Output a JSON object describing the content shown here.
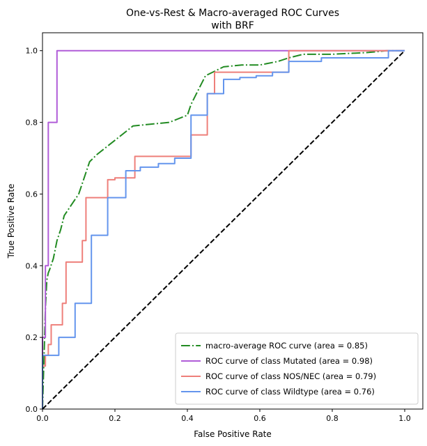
{
  "chart_data": {
    "type": "line",
    "title_line1": "One-vs-Rest & Macro-averaged ROC Curves",
    "title_line2": "with BRF",
    "xlabel": "False Positive Rate",
    "ylabel": "True Positive Rate",
    "xlim": [
      0.0,
      1.05
    ],
    "ylim": [
      0.0,
      1.05
    ],
    "xticks": [
      0.0,
      0.2,
      0.4,
      0.6,
      0.8,
      1.0
    ],
    "yticks": [
      0.0,
      0.2,
      0.4,
      0.6,
      0.8,
      1.0
    ],
    "xtick_labels": [
      "0.0",
      "0.2",
      "0.4",
      "0.6",
      "0.8",
      "1.0"
    ],
    "ytick_labels": [
      "0.0",
      "0.2",
      "0.4",
      "0.6",
      "0.8",
      "1.0"
    ],
    "grid": false,
    "legend_position": "lower-right",
    "series": [
      {
        "name": "macro-average ROC curve (area = 0.85)",
        "color": "#228b22",
        "dash": "dashdot",
        "x": [
          0.0,
          0.005,
          0.008,
          0.012,
          0.016,
          0.02,
          0.03,
          0.04,
          0.05,
          0.06,
          0.08,
          0.1,
          0.13,
          0.15,
          0.2,
          0.25,
          0.3,
          0.35,
          0.4,
          0.41,
          0.45,
          0.5,
          0.55,
          0.6,
          0.65,
          0.68,
          0.72,
          0.8,
          0.9,
          0.95,
          1.0
        ],
        "y": [
          0.0,
          0.17,
          0.28,
          0.36,
          0.38,
          0.39,
          0.42,
          0.47,
          0.5,
          0.54,
          0.57,
          0.6,
          0.69,
          0.71,
          0.75,
          0.79,
          0.795,
          0.8,
          0.82,
          0.85,
          0.93,
          0.955,
          0.96,
          0.96,
          0.97,
          0.98,
          0.99,
          0.99,
          0.995,
          1.0,
          1.0
        ]
      },
      {
        "name": "ROC curve of class Mutated (area = 0.98)",
        "color": "#b05cd8",
        "dash": "solid",
        "x": [
          0.0,
          0.0,
          0.008,
          0.008,
          0.016,
          0.016,
          0.04,
          0.04,
          1.0
        ],
        "y": [
          0.0,
          0.2,
          0.2,
          0.4,
          0.4,
          0.8,
          0.8,
          1.0,
          1.0
        ]
      },
      {
        "name": "ROC curve of class NOS/NEC (area = 0.79)",
        "color": "#ee7f7a",
        "dash": "solid",
        "x": [
          0.0,
          0.0,
          0.008,
          0.008,
          0.016,
          0.016,
          0.024,
          0.024,
          0.055,
          0.055,
          0.065,
          0.065,
          0.11,
          0.11,
          0.12,
          0.12,
          0.18,
          0.18,
          0.2,
          0.2,
          0.255,
          0.255,
          0.41,
          0.41,
          0.43,
          0.43,
          0.455,
          0.455,
          0.475,
          0.475,
          0.68,
          0.68,
          0.96,
          0.96,
          1.0
        ],
        "y": [
          0.0,
          0.12,
          0.12,
          0.15,
          0.15,
          0.18,
          0.18,
          0.235,
          0.235,
          0.295,
          0.295,
          0.41,
          0.41,
          0.47,
          0.47,
          0.59,
          0.59,
          0.64,
          0.64,
          0.645,
          0.645,
          0.705,
          0.705,
          0.765,
          0.765,
          0.765,
          0.765,
          0.88,
          0.88,
          0.94,
          0.94,
          1.0,
          1.0,
          1.0,
          1.0
        ]
      },
      {
        "name": "ROC curve of class Wildtype (area = 0.76)",
        "color": "#6495ed",
        "dash": "solid",
        "x": [
          0.0,
          0.0,
          0.045,
          0.045,
          0.09,
          0.09,
          0.135,
          0.135,
          0.18,
          0.18,
          0.23,
          0.23,
          0.27,
          0.27,
          0.32,
          0.32,
          0.365,
          0.365,
          0.41,
          0.41,
          0.455,
          0.455,
          0.5,
          0.5,
          0.545,
          0.545,
          0.59,
          0.59,
          0.635,
          0.635,
          0.68,
          0.68,
          0.725,
          0.725,
          0.77,
          0.77,
          0.955,
          0.955,
          1.0
        ],
        "y": [
          0.0,
          0.15,
          0.15,
          0.2,
          0.2,
          0.295,
          0.295,
          0.485,
          0.485,
          0.59,
          0.59,
          0.665,
          0.665,
          0.675,
          0.675,
          0.685,
          0.685,
          0.7,
          0.7,
          0.82,
          0.82,
          0.88,
          0.88,
          0.92,
          0.92,
          0.925,
          0.925,
          0.93,
          0.93,
          0.94,
          0.94,
          0.97,
          0.97,
          0.97,
          0.97,
          0.98,
          0.98,
          1.0,
          1.0
        ]
      },
      {
        "name": "",
        "color": "#000000",
        "dash": "dashed",
        "x": [
          0.0,
          1.0
        ],
        "y": [
          0.0,
          1.0
        ]
      }
    ]
  }
}
